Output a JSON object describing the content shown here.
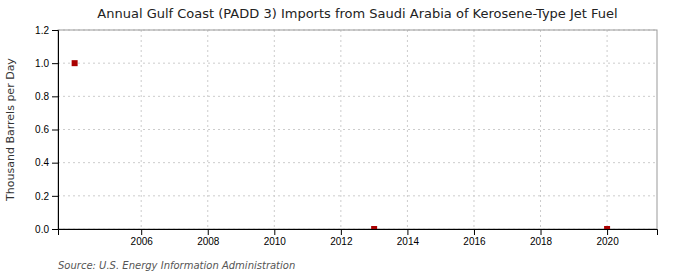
{
  "chart_data": {
    "type": "scatter",
    "title": "Annual Gulf Coast (PADD 3) Imports from Saudi Arabia of Kerosene-Type Jet Fuel",
    "y_label": "Thousand Barrels per Day",
    "source": "Source: U.S. Energy Information Administration",
    "x": [
      2004,
      2013,
      2020
    ],
    "values": [
      1.0,
      0.0,
      0.0
    ],
    "color": "#AA0000",
    "marker": "square",
    "xlim": [
      2003.5,
      2021.5
    ],
    "ylim": [
      0.0,
      1.2
    ],
    "xticks": [
      2006,
      2008,
      2010,
      2012,
      2014,
      2016,
      2018,
      2020
    ],
    "yticks": [
      {
        "value": 0.0,
        "label": "0.0"
      },
      {
        "value": 0.2,
        "label": "0.2"
      },
      {
        "value": 0.4,
        "label": "0.4"
      },
      {
        "value": 0.6,
        "label": "0.6"
      },
      {
        "value": 0.8,
        "label": "0.8"
      },
      {
        "value": 1.0,
        "label": "1.0"
      },
      {
        "value": 1.2,
        "label": "1.2"
      }
    ],
    "grid": true
  }
}
